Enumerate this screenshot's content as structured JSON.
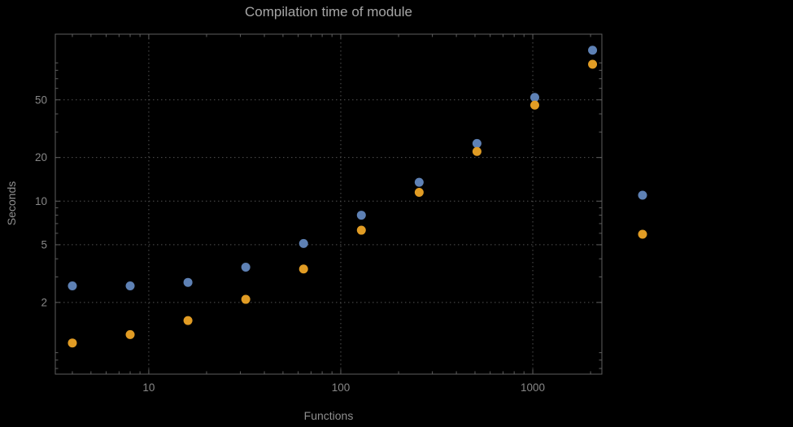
{
  "chart_data": {
    "type": "scatter",
    "title": "Compilation time of module",
    "xlabel": "Functions",
    "ylabel": "Seconds",
    "x_scale": "log",
    "y_scale": "log",
    "xlim": [
      3.26,
      2290
    ],
    "ylim": [
      0.64,
      142
    ],
    "grid": true,
    "x": [
      4,
      8,
      16,
      32,
      64,
      128,
      256,
      512,
      1024,
      2048
    ],
    "series": [
      {
        "name": "blue-series",
        "color": "#5E81B5",
        "values": [
          2.6,
          2.6,
          2.75,
          3.5,
          5.1,
          8.0,
          13.5,
          25,
          52,
          110
        ]
      },
      {
        "name": "orange-series",
        "color": "#E19C24",
        "values": [
          1.05,
          1.2,
          1.5,
          2.1,
          3.4,
          6.3,
          11.5,
          22,
          46,
          88
        ]
      }
    ],
    "x_ticks": {
      "major": [
        10,
        100,
        1000
      ],
      "labels": [
        "10",
        "100",
        "1000"
      ]
    },
    "y_ticks": {
      "major": [
        2,
        5,
        10,
        20,
        50
      ],
      "labels": [
        "2",
        "5",
        "10",
        "20",
        "50"
      ]
    },
    "legend": {
      "position": "outside-right",
      "markers": [
        {
          "color": "#5E81B5"
        },
        {
          "color": "#E19C24"
        }
      ]
    }
  },
  "colors": {
    "background": "#000000",
    "frame": "#5e5e5e",
    "grid": "#525252",
    "tick_text": "#878787"
  }
}
